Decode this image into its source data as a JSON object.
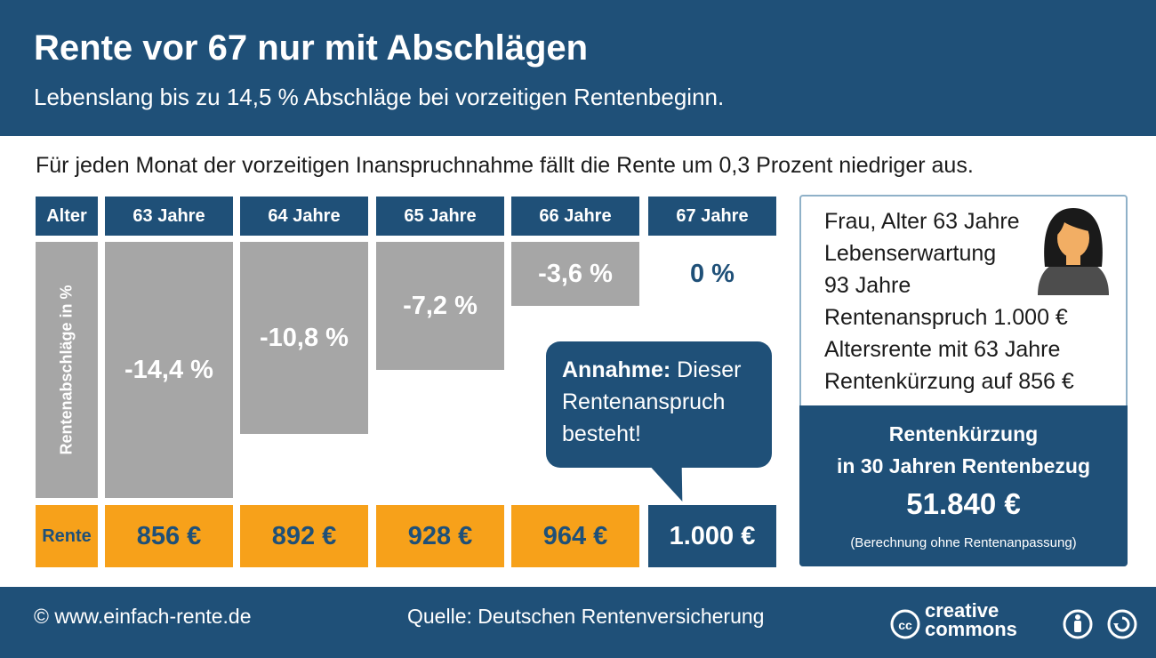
{
  "header": {
    "title": "Rente vor 67 nur mit Abschlägen",
    "subtitle": "Lebenslang bis zu 14,5 % Abschläge bei vorzeitigen Rentenbeginn."
  },
  "intro": "Für jeden Monat der vorzeitigen Inanspruchnahme fällt die Rente um 0,3 Prozent niedriger aus.",
  "table": {
    "age_label": "Alter",
    "y_axis_label": "Rentenabschläge in %",
    "rente_label": "Rente"
  },
  "chart_data": {
    "type": "bar",
    "title": "",
    "categories": [
      "63 Jahre",
      "64 Jahre",
      "65 Jahre",
      "66 Jahre",
      "67 Jahre"
    ],
    "values": [
      -14.4,
      -10.8,
      -7.2,
      -3.6,
      0
    ],
    "value_labels": [
      "-14,4 %",
      "-10,8 %",
      "-7,2 %",
      "-3,6 %",
      "0 %"
    ],
    "rente": [
      "856 €",
      "892 €",
      "928 €",
      "964 €",
      "1.000 €"
    ],
    "ylabel": "Rentenabschläge in %",
    "ylim": [
      -14.4,
      0
    ],
    "colors": {
      "bar": "#a6a6a6",
      "rente_bg": "#f7a11a",
      "accent": "#1f5078"
    }
  },
  "bubble": {
    "bold": "Annahme:",
    "text": " Dieser Rentenanspruch besteht!"
  },
  "info": {
    "lines": [
      "Frau, Alter 63 Jahre",
      "Lebenserwartung",
      "93 Jahre",
      "Rentenanspruch 1.000 €",
      "Altersrente mit 63 Jahre",
      "Rentenkürzung auf 856 €"
    ],
    "box_title_1": "Rentenkürzung",
    "box_title_2": "in 30 Jahren Rentenbezug",
    "amount": "51.840 €",
    "note": "(Berechnung ohne Rentenanpassung)",
    "avatar_icon": "woman-avatar-icon"
  },
  "footer": {
    "copyright": "© www.einfach-rente.de",
    "source": "Quelle: Deutschen Rentenversicherung",
    "license_line1": "creative",
    "license_line2": "commons"
  }
}
